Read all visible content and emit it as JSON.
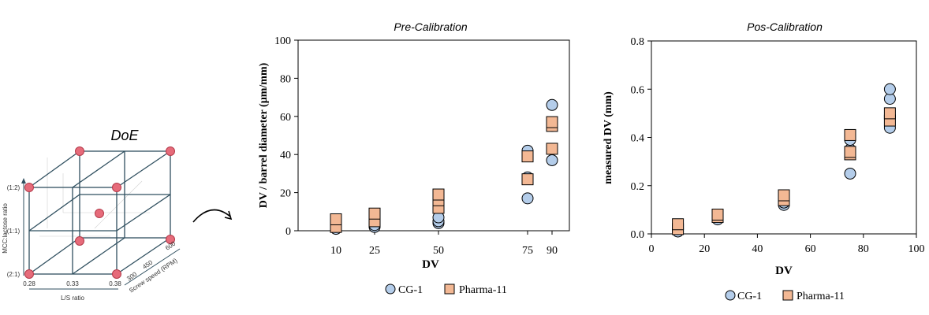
{
  "colors": {
    "cg1_fill": "#b4cdea",
    "pharma_fill": "#f3b894",
    "doe_point": "#e66b7a",
    "axis": "#000000",
    "cube_line": "#2f4f5f"
  },
  "doe": {
    "title": "DoE",
    "y_label": "MCC:lactose ratio",
    "y_ticks": [
      "(1:2)",
      "(1:1)",
      "(2:1)"
    ],
    "x_label": "L/S ratio",
    "x_ticks": [
      "0.28",
      "0.33",
      "0.38"
    ],
    "z_label": "Screw speed (RPM)",
    "z_ticks": [
      "300",
      "450",
      "600"
    ],
    "arrow_icon": "curved-arrow-icon"
  },
  "chart_data": [
    {
      "type": "scatter",
      "title": "Pre-Calibration",
      "xlabel": "DV",
      "ylabel": "DV / barrel diameter (µm/mm)",
      "x_categories": [
        "10",
        "25",
        "50",
        "75",
        "90"
      ],
      "ylim": [
        0,
        100
      ],
      "yticks": [
        "0",
        "20",
        "40",
        "60",
        "80",
        "100"
      ],
      "grid": false,
      "legend_placement": "bottom",
      "series": [
        {
          "name": "CG-1",
          "marker": "circle",
          "points": [
            {
              "x": "10",
              "y": 1
            },
            {
              "x": "10",
              "y": 2
            },
            {
              "x": "25",
              "y": 2
            },
            {
              "x": "25",
              "y": 3
            },
            {
              "x": "50",
              "y": 4
            },
            {
              "x": "50",
              "y": 5
            },
            {
              "x": "50",
              "y": 7
            },
            {
              "x": "75",
              "y": 17
            },
            {
              "x": "75",
              "y": 28
            },
            {
              "x": "75",
              "y": 42
            },
            {
              "x": "90",
              "y": 37
            },
            {
              "x": "90",
              "y": 55
            },
            {
              "x": "90",
              "y": 66
            }
          ]
        },
        {
          "name": "Pharma-11",
          "marker": "square",
          "points": [
            {
              "x": "10",
              "y": 2
            },
            {
              "x": "10",
              "y": 6
            },
            {
              "x": "25",
              "y": 5
            },
            {
              "x": "25",
              "y": 9
            },
            {
              "x": "50",
              "y": 12
            },
            {
              "x": "50",
              "y": 16
            },
            {
              "x": "50",
              "y": 19
            },
            {
              "x": "75",
              "y": 27
            },
            {
              "x": "75",
              "y": 39
            },
            {
              "x": "90",
              "y": 43
            },
            {
              "x": "90",
              "y": 55
            },
            {
              "x": "90",
              "y": 57
            }
          ]
        }
      ]
    },
    {
      "type": "scatter",
      "title": "Pos-Calibration",
      "xlabel": "DV",
      "ylabel": "measured DV (mm)",
      "xlim": [
        0,
        100
      ],
      "xticks": [
        "0",
        "20",
        "40",
        "60",
        "80",
        "100"
      ],
      "ylim": [
        0,
        0.8
      ],
      "yticks": [
        "0.0",
        "0.2",
        "0.4",
        "0.6",
        "0.8"
      ],
      "grid": false,
      "legend_placement": "bottom",
      "series": [
        {
          "name": "CG-1",
          "marker": "circle",
          "points": [
            {
              "x": 10,
              "y": 0.01
            },
            {
              "x": 10,
              "y": 0.02
            },
            {
              "x": 25,
              "y": 0.06
            },
            {
              "x": 25,
              "y": 0.07
            },
            {
              "x": 50,
              "y": 0.12
            },
            {
              "x": 50,
              "y": 0.13
            },
            {
              "x": 75,
              "y": 0.25
            },
            {
              "x": 75,
              "y": 0.35
            },
            {
              "x": 75,
              "y": 0.39
            },
            {
              "x": 90,
              "y": 0.44
            },
            {
              "x": 90,
              "y": 0.56
            },
            {
              "x": 90,
              "y": 0.6
            }
          ]
        },
        {
          "name": "Pharma-11",
          "marker": "square",
          "points": [
            {
              "x": 10,
              "y": 0.02
            },
            {
              "x": 10,
              "y": 0.04
            },
            {
              "x": 25,
              "y": 0.07
            },
            {
              "x": 25,
              "y": 0.08
            },
            {
              "x": 50,
              "y": 0.14
            },
            {
              "x": 50,
              "y": 0.16
            },
            {
              "x": 75,
              "y": 0.33
            },
            {
              "x": 75,
              "y": 0.34
            },
            {
              "x": 75,
              "y": 0.41
            },
            {
              "x": 90,
              "y": 0.47
            },
            {
              "x": 90,
              "y": 0.5
            }
          ]
        }
      ]
    }
  ]
}
